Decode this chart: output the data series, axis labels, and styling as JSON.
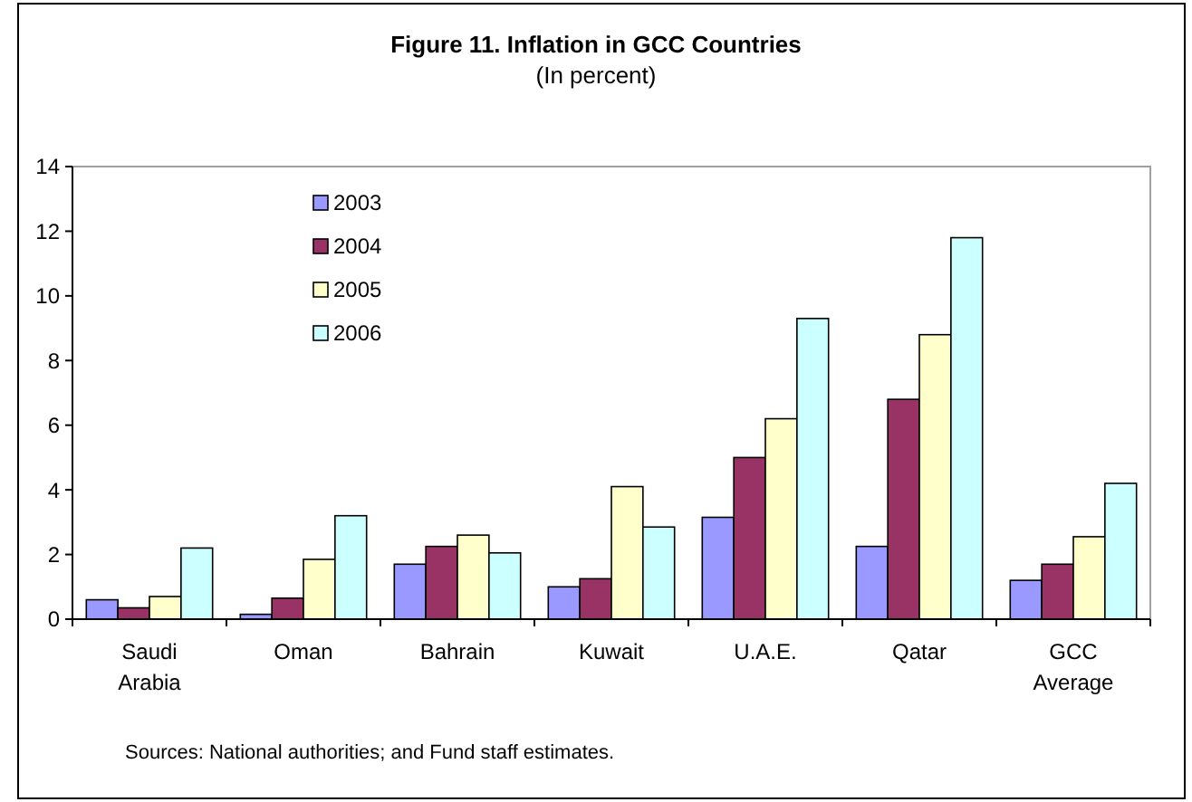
{
  "chart_data": {
    "type": "bar",
    "title": "Figure 11. Inflation in GCC Countries",
    "subtitle": "(In percent)",
    "categories": [
      "Saudi Arabia",
      "Oman",
      "Bahrain",
      "Kuwait",
      "U.A.E.",
      "Qatar",
      "GCC Average"
    ],
    "series": [
      {
        "name": "2003",
        "color": "#9999ff",
        "values": [
          0.6,
          0.15,
          1.7,
          1.0,
          3.15,
          2.25,
          1.2
        ]
      },
      {
        "name": "2004",
        "color": "#993366",
        "values": [
          0.35,
          0.65,
          2.25,
          1.25,
          5.0,
          6.8,
          1.7
        ]
      },
      {
        "name": "2005",
        "color": "#ffffcc",
        "values": [
          0.7,
          1.85,
          2.6,
          4.1,
          6.2,
          8.8,
          2.55
        ]
      },
      {
        "name": "2006",
        "color": "#ccffff",
        "values": [
          2.2,
          3.2,
          2.05,
          2.85,
          9.3,
          11.8,
          4.2
        ]
      }
    ],
    "ylim": [
      0,
      14
    ],
    "yticks": [
      0,
      2,
      4,
      6,
      8,
      10,
      12,
      14
    ],
    "grid": false,
    "legend": "top left",
    "annotations": [
      "Sources: National authorities; and Fund staff estimates."
    ]
  }
}
